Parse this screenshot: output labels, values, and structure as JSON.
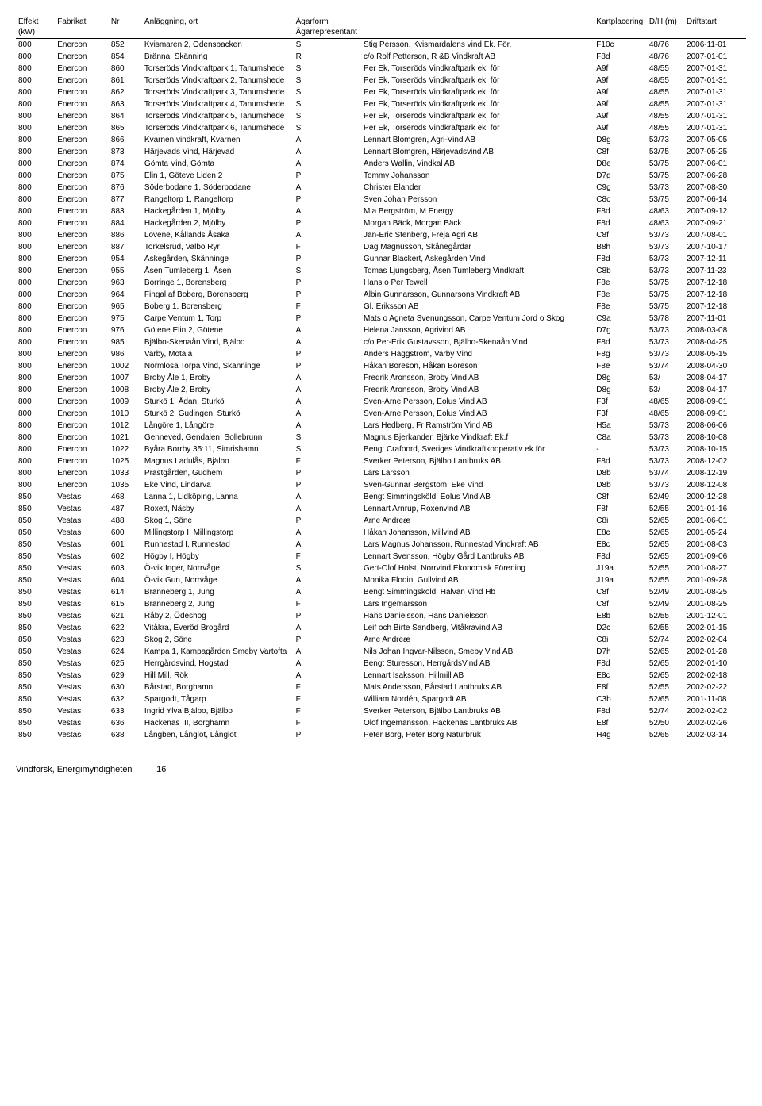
{
  "headers": {
    "effekt": "Effekt (kW)",
    "fabrikat": "Fabrikat",
    "nr": "Nr",
    "anlagg": "Anläggning, ort",
    "agarform": "Ägarform",
    "represent": "Ägarrepresentant",
    "kart": "Kartplacering",
    "dh": "D/H (m)",
    "drift": "Driftstart"
  },
  "rows": [
    {
      "effekt": "800",
      "fabrikat": "Enercon",
      "nr": "852",
      "anlagg": "Kvismaren 2, Odensbacken",
      "agar": "S",
      "represent": "Stig Persson, Kvismardalens vind Ek. För.",
      "kart": "F10c",
      "dh": "48/76",
      "drift": "2006-11-01"
    },
    {
      "effekt": "800",
      "fabrikat": "Enercon",
      "nr": "854",
      "anlagg": "Bränna, Skänning",
      "agar": "R",
      "represent": "c/o Rolf Petterson, R &B Vindkraft AB",
      "kart": "F8d",
      "dh": "48/76",
      "drift": "2007-01-01"
    },
    {
      "effekt": "800",
      "fabrikat": "Enercon",
      "nr": "860",
      "anlagg": "Torseröds Vindkraftpark 1, Tanumshede",
      "agar": "S",
      "represent": "Per Ek, Torseröds Vindkraftpark ek. för",
      "kart": "A9f",
      "dh": "48/55",
      "drift": "2007-01-31"
    },
    {
      "effekt": "800",
      "fabrikat": "Enercon",
      "nr": "861",
      "anlagg": "Torseröds Vindkraftpark 2, Tanumshede",
      "agar": "S",
      "represent": "Per Ek, Torseröds Vindkraftpark ek. för",
      "kart": "A9f",
      "dh": "48/55",
      "drift": "2007-01-31"
    },
    {
      "effekt": "800",
      "fabrikat": "Enercon",
      "nr": "862",
      "anlagg": "Torseröds Vindkraftpark 3, Tanumshede",
      "agar": "S",
      "represent": "Per Ek, Torseröds Vindkraftpark ek. för",
      "kart": "A9f",
      "dh": "48/55",
      "drift": "2007-01-31"
    },
    {
      "effekt": "800",
      "fabrikat": "Enercon",
      "nr": "863",
      "anlagg": "Torseröds Vindkraftpark 4, Tanumshede",
      "agar": "S",
      "represent": "Per Ek, Torseröds Vindkraftpark ek. för",
      "kart": "A9f",
      "dh": "48/55",
      "drift": "2007-01-31"
    },
    {
      "effekt": "800",
      "fabrikat": "Enercon",
      "nr": "864",
      "anlagg": "Torseröds Vindkraftpark 5, Tanumshede",
      "agar": "S",
      "represent": "Per Ek, Torseröds Vindkraftpark ek. för",
      "kart": "A9f",
      "dh": "48/55",
      "drift": "2007-01-31"
    },
    {
      "effekt": "800",
      "fabrikat": "Enercon",
      "nr": "865",
      "anlagg": "Torseröds Vindkraftpark 6, Tanumshede",
      "agar": "S",
      "represent": "Per Ek, Torseröds Vindkraftpark ek. för",
      "kart": "A9f",
      "dh": "48/55",
      "drift": "2007-01-31"
    },
    {
      "effekt": "800",
      "fabrikat": "Enercon",
      "nr": "866",
      "anlagg": "Kvarnen vindkraft, Kvarnen",
      "agar": "A",
      "represent": "Lennart Blomgren, Agri-Vind AB",
      "kart": "D8g",
      "dh": "53/73",
      "drift": "2007-05-05"
    },
    {
      "effekt": "800",
      "fabrikat": "Enercon",
      "nr": "873",
      "anlagg": "Härjevads Vind, Härjevad",
      "agar": "A",
      "represent": "Lennart Blomgren, Härjevadsvind AB",
      "kart": "C8f",
      "dh": "53/75",
      "drift": "2007-05-25"
    },
    {
      "effekt": "800",
      "fabrikat": "Enercon",
      "nr": "874",
      "anlagg": "Gömta Vind, Gömta",
      "agar": "A",
      "represent": "Anders Wallin, Vindkal AB",
      "kart": "D8e",
      "dh": "53/75",
      "drift": "2007-06-01"
    },
    {
      "effekt": "800",
      "fabrikat": "Enercon",
      "nr": "875",
      "anlagg": "Elin 1, Göteve Liden 2",
      "agar": "P",
      "represent": "Tommy Johansson",
      "kart": "D7g",
      "dh": "53/75",
      "drift": "2007-06-28"
    },
    {
      "effekt": "800",
      "fabrikat": "Enercon",
      "nr": "876",
      "anlagg": "Söderbodane 1, Söderbodane",
      "agar": "A",
      "represent": "Christer Elander",
      "kart": "C9g",
      "dh": "53/73",
      "drift": "2007-08-30"
    },
    {
      "effekt": "800",
      "fabrikat": "Enercon",
      "nr": "877",
      "anlagg": "Rangeltorp 1, Rangeltorp",
      "agar": "P",
      "represent": "Sven Johan Persson",
      "kart": "C8c",
      "dh": "53/75",
      "drift": "2007-06-14"
    },
    {
      "effekt": "800",
      "fabrikat": "Enercon",
      "nr": "883",
      "anlagg": "Hackegården 1, Mjölby",
      "agar": "A",
      "represent": "Mia Bergström, M Energy",
      "kart": "F8d",
      "dh": "48/63",
      "drift": "2007-09-12"
    },
    {
      "effekt": "800",
      "fabrikat": "Enercon",
      "nr": "884",
      "anlagg": "Hackegården 2, Mjölby",
      "agar": "P",
      "represent": "Morgan Bäck, Morgan Bäck",
      "kart": "F8d",
      "dh": "48/63",
      "drift": "2007-09-21"
    },
    {
      "effekt": "800",
      "fabrikat": "Enercon",
      "nr": "886",
      "anlagg": "Lovene, Kållands Åsaka",
      "agar": "A",
      "represent": "Jan-Eric Stenberg, Freja Agri AB",
      "kart": "C8f",
      "dh": "53/73",
      "drift": "2007-08-01"
    },
    {
      "effekt": "800",
      "fabrikat": "Enercon",
      "nr": "887",
      "anlagg": "Torkelsrud, Valbo Ryr",
      "agar": "F",
      "represent": "Dag Magnusson, Skånegårdar",
      "kart": "B8h",
      "dh": "53/73",
      "drift": "2007-10-17"
    },
    {
      "effekt": "800",
      "fabrikat": "Enercon",
      "nr": "954",
      "anlagg": "Askegården, Skänninge",
      "agar": "P",
      "represent": "Gunnar Blackert, Askegården Vind",
      "kart": "F8d",
      "dh": "53/73",
      "drift": "2007-12-11"
    },
    {
      "effekt": "800",
      "fabrikat": "Enercon",
      "nr": "955",
      "anlagg": "Åsen Tumleberg 1, Åsen",
      "agar": "S",
      "represent": "Tomas Ljungsberg, Åsen Tumleberg Vindkraft",
      "kart": "C8b",
      "dh": "53/73",
      "drift": "2007-11-23"
    },
    {
      "effekt": "800",
      "fabrikat": "Enercon",
      "nr": "963",
      "anlagg": "Borringe 1, Borensberg",
      "agar": "P",
      "represent": "Hans o Per Tewell",
      "kart": "F8e",
      "dh": "53/75",
      "drift": "2007-12-18"
    },
    {
      "effekt": "800",
      "fabrikat": "Enercon",
      "nr": "964",
      "anlagg": "Fingal af Boberg, Borensberg",
      "agar": "P",
      "represent": "Albin Gunnarsson, Gunnarsons Vindkraft AB",
      "kart": "F8e",
      "dh": "53/75",
      "drift": "2007-12-18"
    },
    {
      "effekt": "800",
      "fabrikat": "Enercon",
      "nr": "965",
      "anlagg": "Boberg 1, Borensberg",
      "agar": "F",
      "represent": "Gl. Eriksson AB",
      "kart": "F8e",
      "dh": "53/75",
      "drift": "2007-12-18"
    },
    {
      "effekt": "800",
      "fabrikat": "Enercon",
      "nr": "975",
      "anlagg": "Carpe Ventum 1, Torp",
      "agar": "P",
      "represent": "Mats o Agneta Svenungsson, Carpe Ventum Jord o Skog",
      "kart": "C9a",
      "dh": "53/78",
      "drift": "2007-11-01"
    },
    {
      "effekt": "800",
      "fabrikat": "Enercon",
      "nr": "976",
      "anlagg": "Götene Elin 2, Götene",
      "agar": "A",
      "represent": "Helena Jansson, Agrivind AB",
      "kart": "D7g",
      "dh": "53/73",
      "drift": "2008-03-08"
    },
    {
      "effekt": "800",
      "fabrikat": "Enercon",
      "nr": "985",
      "anlagg": "Bjälbo-Skenaån Vind, Bjälbo",
      "agar": "A",
      "represent": "c/o Per-Erik Gustavsson, Bjälbo-Skenaån Vind",
      "kart": "F8d",
      "dh": "53/73",
      "drift": "2008-04-25"
    },
    {
      "effekt": "800",
      "fabrikat": "Enercon",
      "nr": "986",
      "anlagg": "Varby, Motala",
      "agar": "P",
      "represent": "Anders Häggström, Varby Vind",
      "kart": "F8g",
      "dh": "53/73",
      "drift": "2008-05-15"
    },
    {
      "effekt": "800",
      "fabrikat": "Enercon",
      "nr": "1002",
      "anlagg": "Normlösa Torpa Vind, Skänninge",
      "agar": "P",
      "represent": "Håkan Boreson, Håkan Boreson",
      "kart": "F8e",
      "dh": "53/74",
      "drift": "2008-04-30"
    },
    {
      "effekt": "800",
      "fabrikat": "Enercon",
      "nr": "1007",
      "anlagg": "Broby Åle 1, Broby",
      "agar": "A",
      "represent": "Fredrik Aronsson, Broby Vind AB",
      "kart": "D8g",
      "dh": "53/",
      "drift": "2008-04-17"
    },
    {
      "effekt": "800",
      "fabrikat": "Enercon",
      "nr": "1008",
      "anlagg": "Broby Åle 2, Broby",
      "agar": "A",
      "represent": "Fredrik Aronsson, Broby Vind AB",
      "kart": "D8g",
      "dh": "53/",
      "drift": "2008-04-17"
    },
    {
      "effekt": "800",
      "fabrikat": "Enercon",
      "nr": "1009",
      "anlagg": "Sturkö 1, Ådan, Sturkö",
      "agar": "A",
      "represent": "Sven-Arne Persson, Eolus Vind AB",
      "kart": "F3f",
      "dh": "48/65",
      "drift": "2008-09-01"
    },
    {
      "effekt": "800",
      "fabrikat": "Enercon",
      "nr": "1010",
      "anlagg": "Sturkö 2, Gudingen, Sturkö",
      "agar": "A",
      "represent": "Sven-Arne Persson, Eolus Vind AB",
      "kart": "F3f",
      "dh": "48/65",
      "drift": "2008-09-01"
    },
    {
      "effekt": "800",
      "fabrikat": "Enercon",
      "nr": "1012",
      "anlagg": "Långöre 1, Långöre",
      "agar": "A",
      "represent": "Lars Hedberg, Fr Ramström Vind AB",
      "kart": "H5a",
      "dh": "53/73",
      "drift": "2008-06-06"
    },
    {
      "effekt": "800",
      "fabrikat": "Enercon",
      "nr": "1021",
      "anlagg": "Genneved, Gendalen, Sollebrunn",
      "agar": "S",
      "represent": "Magnus Bjerkander, Bjärke Vindkraft Ek.f",
      "kart": "C8a",
      "dh": "53/73",
      "drift": "2008-10-08"
    },
    {
      "effekt": "800",
      "fabrikat": "Enercon",
      "nr": "1022",
      "anlagg": "Byåra Borrby 35:11, Simrishamn",
      "agar": "S",
      "represent": "Bengt Crafoord, Sveriges Vindkraftkooperativ ek för.",
      "kart": "-",
      "dh": "53/73",
      "drift": "2008-10-15"
    },
    {
      "effekt": "800",
      "fabrikat": "Enercon",
      "nr": "1025",
      "anlagg": "Magnus Ladulås, Bjälbo",
      "agar": "F",
      "represent": "Sverker Peterson, Bjälbo Lantbruks AB",
      "kart": "F8d",
      "dh": "53/73",
      "drift": "2008-12-02"
    },
    {
      "effekt": "800",
      "fabrikat": "Enercon",
      "nr": "1033",
      "anlagg": "Prästgården, Gudhem",
      "agar": "P",
      "represent": "Lars Larsson",
      "kart": "D8b",
      "dh": "53/74",
      "drift": "2008-12-19"
    },
    {
      "effekt": "800",
      "fabrikat": "Enercon",
      "nr": "1035",
      "anlagg": "Eke Vind, Lindärva",
      "agar": "P",
      "represent": "Sven-Gunnar Bergstöm, Eke Vind",
      "kart": "D8b",
      "dh": "53/73",
      "drift": "2008-12-08"
    },
    {
      "effekt": "850",
      "fabrikat": "Vestas",
      "nr": "468",
      "anlagg": "Lanna 1, Lidköping, Lanna",
      "agar": "A",
      "represent": "Bengt Simmingsköld, Eolus Vind AB",
      "kart": "C8f",
      "dh": "52/49",
      "drift": "2000-12-28"
    },
    {
      "effekt": "850",
      "fabrikat": "Vestas",
      "nr": "487",
      "anlagg": "Roxett, Näsby",
      "agar": "A",
      "represent": "Lennart Arnrup, Roxenvind AB",
      "kart": "F8f",
      "dh": "52/55",
      "drift": "2001-01-16"
    },
    {
      "effekt": "850",
      "fabrikat": "Vestas",
      "nr": "488",
      "anlagg": "Skog 1, Söne",
      "agar": "P",
      "represent": "Arne Andreæ",
      "kart": "C8i",
      "dh": "52/65",
      "drift": "2001-06-01"
    },
    {
      "effekt": "850",
      "fabrikat": "Vestas",
      "nr": "600",
      "anlagg": "Millingstorp I, Millingstorp",
      "agar": "A",
      "represent": "Håkan Johansson, Millvind AB",
      "kart": "E8c",
      "dh": "52/65",
      "drift": "2001-05-24"
    },
    {
      "effekt": "850",
      "fabrikat": "Vestas",
      "nr": "601",
      "anlagg": "Runnestad I, Runnestad",
      "agar": "A",
      "represent": "Lars Magnus Johansson, Runnestad Vindkraft AB",
      "kart": "E8c",
      "dh": "52/65",
      "drift": "2001-08-03"
    },
    {
      "effekt": "850",
      "fabrikat": "Vestas",
      "nr": "602",
      "anlagg": "Högby I, Högby",
      "agar": "F",
      "represent": "Lennart Svensson, Högby Gård Lantbruks AB",
      "kart": "F8d",
      "dh": "52/65",
      "drift": "2001-09-06"
    },
    {
      "effekt": "850",
      "fabrikat": "Vestas",
      "nr": "603",
      "anlagg": "Ö-vik Inger, Norrvåge",
      "agar": "S",
      "represent": "Gert-Olof Holst, Norrvind Ekonomisk Förening",
      "kart": "J19a",
      "dh": "52/55",
      "drift": "2001-08-27"
    },
    {
      "effekt": "850",
      "fabrikat": "Vestas",
      "nr": "604",
      "anlagg": "Ö-vik Gun, Norrvåge",
      "agar": "A",
      "represent": "Monika Flodin, Gullvind AB",
      "kart": "J19a",
      "dh": "52/55",
      "drift": "2001-09-28"
    },
    {
      "effekt": "850",
      "fabrikat": "Vestas",
      "nr": "614",
      "anlagg": "Bränneberg 1, Jung",
      "agar": "A",
      "represent": "Bengt Simmingsköld, Halvan Vind Hb",
      "kart": "C8f",
      "dh": "52/49",
      "drift": "2001-08-25"
    },
    {
      "effekt": "850",
      "fabrikat": "Vestas",
      "nr": "615",
      "anlagg": "Bränneberg 2, Jung",
      "agar": "F",
      "represent": "Lars Ingemarsson",
      "kart": "C8f",
      "dh": "52/49",
      "drift": "2001-08-25"
    },
    {
      "effekt": "850",
      "fabrikat": "Vestas",
      "nr": "621",
      "anlagg": "Råby 2, Ödeshög",
      "agar": "P",
      "represent": "Hans Danielsson, Hans Danielsson",
      "kart": "E8b",
      "dh": "52/55",
      "drift": "2001-12-01"
    },
    {
      "effekt": "850",
      "fabrikat": "Vestas",
      "nr": "622",
      "anlagg": "Vitåkra, Everöd Brogård",
      "agar": "A",
      "represent": "Leif och Birte Sandberg, Vitåkravind AB",
      "kart": "D2c",
      "dh": "52/55",
      "drift": "2002-01-15"
    },
    {
      "effekt": "850",
      "fabrikat": "Vestas",
      "nr": "623",
      "anlagg": "Skog 2, Söne",
      "agar": "P",
      "represent": "Arne Andreæ",
      "kart": "C8i",
      "dh": "52/74",
      "drift": "2002-02-04"
    },
    {
      "effekt": "850",
      "fabrikat": "Vestas",
      "nr": "624",
      "anlagg": "Kampa 1, Kampagården Smeby Vartofta",
      "agar": "A",
      "represent": "Nils Johan Ingvar-Nilsson, Smeby Vind AB",
      "kart": "D7h",
      "dh": "52/65",
      "drift": "2002-01-28"
    },
    {
      "effekt": "850",
      "fabrikat": "Vestas",
      "nr": "625",
      "anlagg": "Herrgårdsvind, Hogstad",
      "agar": "A",
      "represent": "Bengt Sturesson, HerrgårdsVind AB",
      "kart": "F8d",
      "dh": "52/65",
      "drift": "2002-01-10"
    },
    {
      "effekt": "850",
      "fabrikat": "Vestas",
      "nr": "629",
      "anlagg": "Hill Mill, Rök",
      "agar": "A",
      "represent": "Lennart Isaksson, Hillmill AB",
      "kart": "E8c",
      "dh": "52/65",
      "drift": "2002-02-18"
    },
    {
      "effekt": "850",
      "fabrikat": "Vestas",
      "nr": "630",
      "anlagg": "Bårstad, Borghamn",
      "agar": "F",
      "represent": "Mats Andersson, Bårstad Lantbruks AB",
      "kart": "E8f",
      "dh": "52/55",
      "drift": "2002-02-22"
    },
    {
      "effekt": "850",
      "fabrikat": "Vestas",
      "nr": "632",
      "anlagg": "Spargodt, Tågarp",
      "agar": "F",
      "represent": "William Nordén, Spargodt AB",
      "kart": "C3b",
      "dh": "52/65",
      "drift": "2001-11-08"
    },
    {
      "effekt": "850",
      "fabrikat": "Vestas",
      "nr": "633",
      "anlagg": "Ingrid Ylva Bjälbo, Bjälbo",
      "agar": "F",
      "represent": "Sverker Peterson, Bjälbo Lantbruks AB",
      "kart": "F8d",
      "dh": "52/74",
      "drift": "2002-02-02"
    },
    {
      "effekt": "850",
      "fabrikat": "Vestas",
      "nr": "636",
      "anlagg": "Häckenäs III, Borghamn",
      "agar": "F",
      "represent": "Olof Ingemansson, Häckenäs Lantbruks AB",
      "kart": "E8f",
      "dh": "52/50",
      "drift": "2002-02-26"
    },
    {
      "effekt": "850",
      "fabrikat": "Vestas",
      "nr": "638",
      "anlagg": "Långben, Långlöt, Långlöt",
      "agar": "P",
      "represent": "Peter Borg, Peter Borg Naturbruk",
      "kart": "H4g",
      "dh": "52/65",
      "drift": "2002-03-14"
    }
  ],
  "footer": {
    "text": "Vindforsk, Energimyndigheten",
    "page": "16"
  }
}
